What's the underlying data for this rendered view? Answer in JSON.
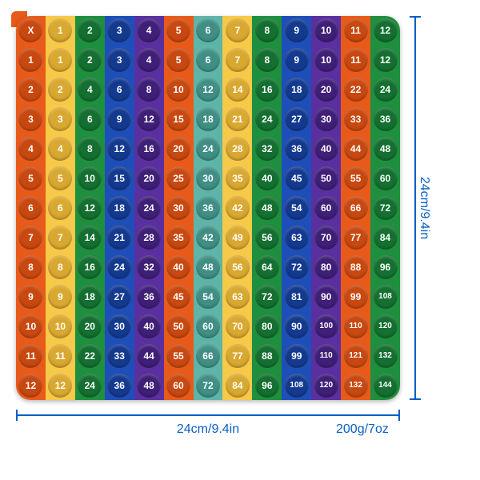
{
  "grid_size": 13,
  "column_colors": [
    "#e85a1a",
    "#f7c948",
    "#1e8f3e",
    "#1e4fb8",
    "#5a2fa0",
    "#e85a1a",
    "#5fb4a8",
    "#f7c948",
    "#1e8f3e",
    "#1e4fb8",
    "#5a2fa0",
    "#e85a1a",
    "#1e8f3e"
  ],
  "bubble_shade": [
    "#c94810",
    "#d9a830",
    "#147030",
    "#143a90",
    "#3f1f78",
    "#c94810",
    "#3f8f85",
    "#d9a830",
    "#147030",
    "#143a90",
    "#3f1f78",
    "#c94810",
    "#147030"
  ],
  "header_row": [
    "X",
    "1",
    "2",
    "3",
    "4",
    "5",
    "6",
    "7",
    "8",
    "9",
    "10",
    "11",
    "12"
  ],
  "header_col": [
    "X",
    "1",
    "2",
    "3",
    "4",
    "5",
    "6",
    "7",
    "8",
    "9",
    "10",
    "11",
    "12"
  ],
  "dim_right": "24cm/9.4in",
  "dim_bottom": "24cm/9.4in",
  "weight": "200g/7oz",
  "dim_color": "#0a5fc4"
}
